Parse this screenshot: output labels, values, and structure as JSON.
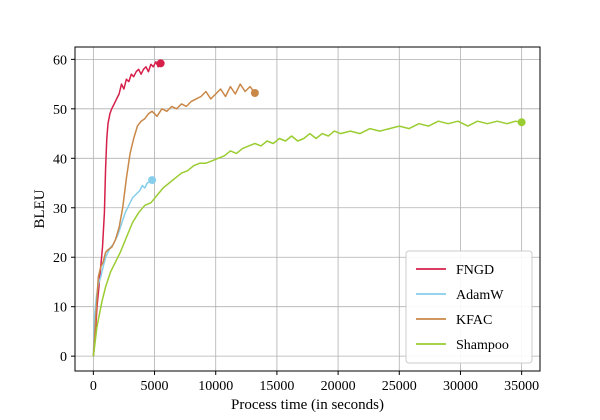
{
  "chart_data": {
    "type": "line",
    "xlabel": "Process time (in seconds)",
    "ylabel": "BLEU",
    "xlim": [
      -1500,
      36500
    ],
    "ylim": [
      -3,
      62.5
    ],
    "xticks": [
      0,
      5000,
      10000,
      15000,
      20000,
      25000,
      30000,
      35000
    ],
    "yticks": [
      0,
      10,
      20,
      30,
      40,
      50,
      60
    ],
    "grid": true,
    "legend_position": "bottom-right",
    "series": [
      {
        "name": "FNGD",
        "color": "#d6204a",
        "marker_at_end": true,
        "points": [
          [
            0,
            0
          ],
          [
            150,
            4
          ],
          [
            300,
            10
          ],
          [
            450,
            14
          ],
          [
            600,
            18
          ],
          [
            750,
            22
          ],
          [
            900,
            29
          ],
          [
            1000,
            38
          ],
          [
            1100,
            44
          ],
          [
            1200,
            47
          ],
          [
            1350,
            49
          ],
          [
            1500,
            50
          ],
          [
            1700,
            51
          ],
          [
            1900,
            52
          ],
          [
            2100,
            53
          ],
          [
            2300,
            55
          ],
          [
            2500,
            54
          ],
          [
            2700,
            56
          ],
          [
            2900,
            55.5
          ],
          [
            3100,
            57
          ],
          [
            3300,
            56.5
          ],
          [
            3500,
            57.5
          ],
          [
            3700,
            58
          ],
          [
            3900,
            57
          ],
          [
            4100,
            58
          ],
          [
            4300,
            58.5
          ],
          [
            4500,
            57.5
          ],
          [
            4700,
            59
          ],
          [
            4900,
            58.5
          ],
          [
            5100,
            59.5
          ],
          [
            5300,
            58.5
          ],
          [
            5500,
            59.2
          ]
        ]
      },
      {
        "name": "AdamW",
        "color": "#87ceeb",
        "marker_at_end": true,
        "points": [
          [
            0,
            0
          ],
          [
            100,
            8
          ],
          [
            250,
            12
          ],
          [
            400,
            14.5
          ],
          [
            600,
            16
          ],
          [
            800,
            18
          ],
          [
            1000,
            20
          ],
          [
            1200,
            21
          ],
          [
            1400,
            22
          ],
          [
            1600,
            22.5
          ],
          [
            1800,
            23.5
          ],
          [
            2000,
            24.5
          ],
          [
            2200,
            26
          ],
          [
            2400,
            27.5
          ],
          [
            2600,
            29
          ],
          [
            2800,
            30
          ],
          [
            3000,
            31
          ],
          [
            3200,
            32
          ],
          [
            3400,
            32.5
          ],
          [
            3600,
            33
          ],
          [
            3800,
            33.5
          ],
          [
            4000,
            34.5
          ],
          [
            4200,
            34
          ],
          [
            4400,
            35
          ],
          [
            4600,
            35.2
          ],
          [
            4800,
            35.6
          ]
        ]
      },
      {
        "name": "KFAC",
        "color": "#c98848",
        "marker_at_end": true,
        "points": [
          [
            0,
            0
          ],
          [
            200,
            8
          ],
          [
            400,
            16
          ],
          [
            600,
            18
          ],
          [
            800,
            19
          ],
          [
            1000,
            21
          ],
          [
            1200,
            21.5
          ],
          [
            1500,
            22
          ],
          [
            1800,
            23.5
          ],
          [
            2100,
            26
          ],
          [
            2400,
            30
          ],
          [
            2700,
            36
          ],
          [
            3000,
            41
          ],
          [
            3300,
            44
          ],
          [
            3600,
            46.5
          ],
          [
            3900,
            47.5
          ],
          [
            4200,
            48
          ],
          [
            4500,
            49
          ],
          [
            4800,
            49.5
          ],
          [
            5200,
            48.5
          ],
          [
            5600,
            50
          ],
          [
            6000,
            49.5
          ],
          [
            6400,
            50.5
          ],
          [
            6800,
            50
          ],
          [
            7200,
            51
          ],
          [
            7600,
            50.5
          ],
          [
            8000,
            51.5
          ],
          [
            8400,
            52
          ],
          [
            8800,
            52.5
          ],
          [
            9200,
            53.5
          ],
          [
            9600,
            52
          ],
          [
            10000,
            53
          ],
          [
            10400,
            54
          ],
          [
            10800,
            52.5
          ],
          [
            11200,
            54.5
          ],
          [
            11600,
            53
          ],
          [
            12000,
            55
          ],
          [
            12400,
            53.5
          ],
          [
            12800,
            54.5
          ],
          [
            13200,
            53.2
          ]
        ]
      },
      {
        "name": "Shampoo",
        "color": "#9acd32",
        "marker_at_end": true,
        "points": [
          [
            0,
            0
          ],
          [
            300,
            6
          ],
          [
            700,
            11
          ],
          [
            1000,
            14
          ],
          [
            1400,
            17
          ],
          [
            1800,
            19
          ],
          [
            2200,
            21
          ],
          [
            2700,
            24
          ],
          [
            3200,
            27
          ],
          [
            3700,
            29
          ],
          [
            4200,
            30.5
          ],
          [
            4700,
            31
          ],
          [
            5200,
            32.5
          ],
          [
            5700,
            34
          ],
          [
            6200,
            35
          ],
          [
            6700,
            36
          ],
          [
            7200,
            37
          ],
          [
            7700,
            37.5
          ],
          [
            8200,
            38.5
          ],
          [
            8700,
            39
          ],
          [
            9200,
            39
          ],
          [
            9700,
            39.5
          ],
          [
            10200,
            40
          ],
          [
            10700,
            40.5
          ],
          [
            11200,
            41.5
          ],
          [
            11700,
            41
          ],
          [
            12200,
            42
          ],
          [
            12700,
            42.5
          ],
          [
            13200,
            43
          ],
          [
            13700,
            42.5
          ],
          [
            14200,
            43.5
          ],
          [
            14700,
            43
          ],
          [
            15200,
            44
          ],
          [
            15700,
            43.5
          ],
          [
            16200,
            44.5
          ],
          [
            16700,
            43.5
          ],
          [
            17200,
            44
          ],
          [
            17700,
            45
          ],
          [
            18200,
            44
          ],
          [
            18700,
            45
          ],
          [
            19200,
            44.5
          ],
          [
            19700,
            45.5
          ],
          [
            20200,
            45
          ],
          [
            21000,
            45.5
          ],
          [
            21800,
            45
          ],
          [
            22600,
            46
          ],
          [
            23400,
            45.5
          ],
          [
            24200,
            46
          ],
          [
            25000,
            46.5
          ],
          [
            25800,
            46
          ],
          [
            26600,
            47
          ],
          [
            27400,
            46.5
          ],
          [
            28200,
            47.5
          ],
          [
            29000,
            47
          ],
          [
            29800,
            47.5
          ],
          [
            30600,
            46.5
          ],
          [
            31400,
            47.5
          ],
          [
            32200,
            47
          ],
          [
            33000,
            47.5
          ],
          [
            33800,
            47
          ],
          [
            34500,
            47.5
          ],
          [
            35000,
            47.3
          ]
        ]
      }
    ]
  }
}
